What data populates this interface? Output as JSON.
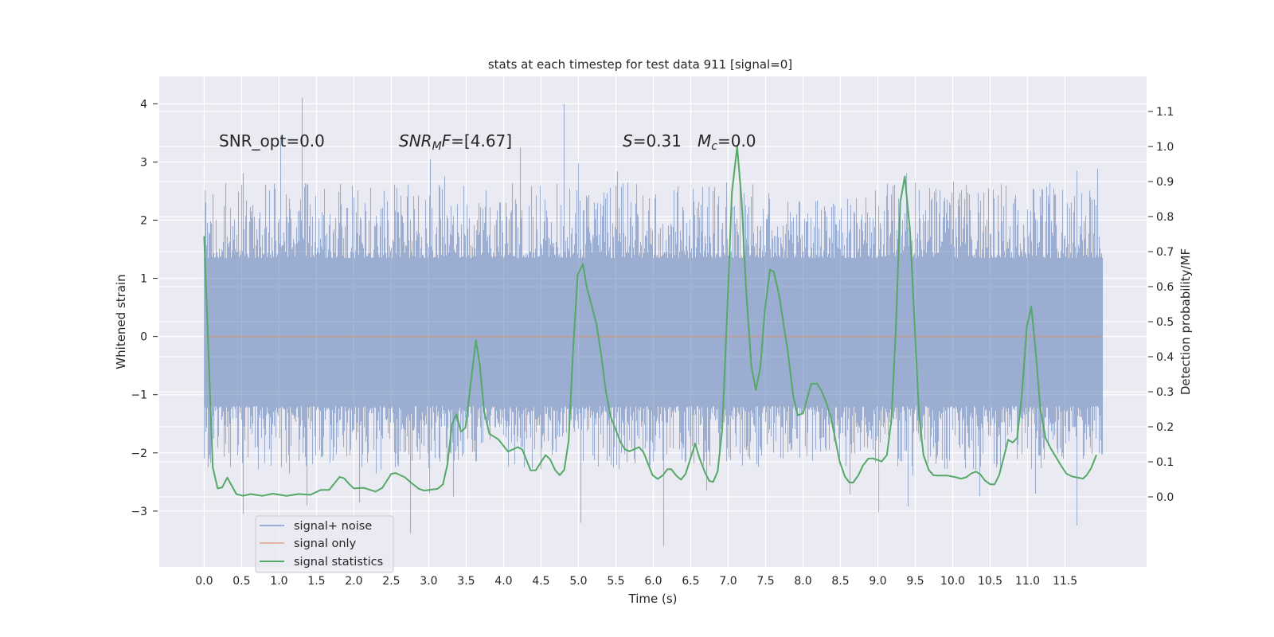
{
  "chart_data": {
    "type": "line",
    "title": "stats at each timestep for test data 911 [signal=0]",
    "xlabel": "Time (s)",
    "ylabel": "Whitened strain",
    "ylabel_right": "Detection probability/MF",
    "xlim": [
      -0.6,
      12.59
    ],
    "ylim": [
      -3.96,
      4.47
    ],
    "ylim_right": [
      -0.2,
      1.2
    ],
    "grid": true,
    "legend_position": "lower-left",
    "xticks": [
      "0.0",
      "0.5",
      "1.0",
      "1.5",
      "2.0",
      "2.5",
      "3.0",
      "3.5",
      "4.0",
      "4.5",
      "5.0",
      "5.5",
      "6.0",
      "6.5",
      "7.0",
      "7.5",
      "8.0",
      "8.5",
      "9.0",
      "9.5",
      "10.0",
      "10.5",
      "11.0",
      "11.5"
    ],
    "yticks": [
      "−3",
      "−2",
      "−1",
      "0",
      "1",
      "2",
      "3",
      "4"
    ],
    "yticks_right": [
      "0.0",
      "0.1",
      "0.2",
      "0.3",
      "0.4",
      "0.5",
      "0.6",
      "0.7",
      "0.8",
      "0.9",
      "1.0",
      "1.1"
    ],
    "annotations": {
      "snr_opt": "SNR_opt=0.0",
      "snr_mf_base": "SNR",
      "snr_mf_sub": "M",
      "snr_mf_rest": "F",
      "snr_mf_value": "=[4.67]",
      "s_var": "S",
      "s_value": "=0.31",
      "mc_var": "M",
      "mc_sub": "c",
      "mc_value": "=0.0"
    },
    "series": [
      {
        "name": "signal+ noise",
        "color": "#4c72b0",
        "axis": "left",
        "t_range": [
          0,
          11.99
        ],
        "band_typical": [
          -1.3,
          1.45
        ],
        "notable_extremes": [
          {
            "t": 1.3,
            "value": 4.1
          },
          {
            "t": 4.8,
            "value": 4.0
          },
          {
            "t": 1.02,
            "value": 3.45
          },
          {
            "t": 4.22,
            "value": 3.25
          },
          {
            "t": 0.52,
            "value": 2.8
          },
          {
            "t": 9.38,
            "value": 2.8
          },
          {
            "t": 11.65,
            "value": 2.85
          },
          {
            "t": 11.93,
            "value": 2.88
          },
          {
            "t": 5.0,
            "value": 2.98
          },
          {
            "t": 0.52,
            "value": -3.05
          },
          {
            "t": 2.75,
            "value": -3.38
          },
          {
            "t": 5.03,
            "value": -3.2
          },
          {
            "t": 6.13,
            "value": -3.6
          },
          {
            "t": 9.0,
            "value": -3.02
          },
          {
            "t": 11.65,
            "value": -3.25
          },
          {
            "t": 1.37,
            "value": -2.9
          },
          {
            "t": 2.07,
            "value": -2.85
          },
          {
            "t": 9.4,
            "value": -2.92
          },
          {
            "t": 3.33,
            "value": -2.75
          },
          {
            "t": 11.1,
            "value": -2.7
          }
        ]
      },
      {
        "name": "signal only",
        "color": "#dd8452",
        "axis": "left",
        "t": [
          0,
          11.99
        ],
        "values": [
          0,
          0
        ]
      },
      {
        "name": "signal statistics",
        "color": "#55a868",
        "axis": "right",
        "t": [
          0.0,
          0.115,
          0.18,
          0.24,
          0.31,
          0.43,
          0.52,
          0.62,
          0.78,
          0.92,
          1.1,
          1.26,
          1.42,
          1.56,
          1.67,
          1.81,
          1.87,
          1.94,
          2.0,
          2.13,
          2.29,
          2.38,
          2.5,
          2.56,
          2.68,
          2.79,
          2.87,
          2.94,
          3.12,
          3.19,
          3.25,
          3.31,
          3.37,
          3.43,
          3.49,
          3.63,
          3.68,
          3.74,
          3.81,
          3.93,
          4.06,
          4.19,
          4.25,
          4.36,
          4.43,
          4.56,
          4.62,
          4.69,
          4.75,
          4.81,
          4.87,
          4.93,
          4.99,
          5.06,
          5.11,
          5.24,
          5.3,
          5.37,
          5.43,
          5.5,
          5.56,
          5.62,
          5.68,
          5.81,
          5.87,
          5.99,
          6.06,
          6.13,
          6.19,
          6.24,
          6.31,
          6.37,
          6.43,
          6.56,
          6.61,
          6.69,
          6.75,
          6.8,
          6.86,
          6.92,
          6.99,
          7.05,
          7.12,
          7.18,
          7.24,
          7.31,
          7.37,
          7.43,
          7.49,
          7.56,
          7.61,
          7.68,
          7.8,
          7.87,
          7.93,
          8.0,
          8.11,
          8.19,
          8.25,
          8.31,
          8.37,
          8.42,
          8.49,
          8.56,
          8.62,
          8.67,
          8.74,
          8.8,
          8.87,
          8.93,
          8.99,
          9.05,
          9.12,
          9.18,
          9.24,
          9.3,
          9.36,
          9.43,
          9.49,
          9.55,
          9.61,
          9.68,
          9.74,
          9.8,
          9.93,
          10.04,
          10.11,
          10.18,
          10.25,
          10.31,
          10.37,
          10.43,
          10.5,
          10.56,
          10.62,
          10.68,
          10.74,
          10.8,
          10.86,
          10.92,
          10.99,
          11.05,
          11.11,
          11.17,
          11.24,
          11.31,
          11.46,
          11.52,
          11.6,
          11.74,
          11.79,
          11.85,
          11.92
        ],
        "values": [
          0.744,
          0.085,
          0.024,
          0.027,
          0.055,
          0.008,
          0.003,
          0.008,
          0.003,
          0.009,
          0.003,
          0.008,
          0.006,
          0.02,
          0.02,
          0.057,
          0.053,
          0.036,
          0.024,
          0.026,
          0.015,
          0.026,
          0.066,
          0.068,
          0.056,
          0.036,
          0.023,
          0.018,
          0.023,
          0.036,
          0.092,
          0.206,
          0.236,
          0.186,
          0.197,
          0.447,
          0.38,
          0.244,
          0.18,
          0.164,
          0.129,
          0.142,
          0.135,
          0.076,
          0.076,
          0.119,
          0.108,
          0.076,
          0.062,
          0.077,
          0.161,
          0.426,
          0.634,
          0.665,
          0.6,
          0.494,
          0.41,
          0.297,
          0.229,
          0.191,
          0.157,
          0.136,
          0.13,
          0.142,
          0.127,
          0.062,
          0.051,
          0.062,
          0.079,
          0.079,
          0.06,
          0.049,
          0.065,
          0.152,
          0.115,
          0.07,
          0.045,
          0.043,
          0.073,
          0.191,
          0.539,
          0.869,
          1.0,
          0.846,
          0.593,
          0.373,
          0.305,
          0.369,
          0.532,
          0.649,
          0.642,
          0.577,
          0.41,
          0.286,
          0.233,
          0.238,
          0.323,
          0.323,
          0.301,
          0.27,
          0.229,
          0.176,
          0.1,
          0.058,
          0.041,
          0.041,
          0.062,
          0.089,
          0.109,
          0.11,
          0.106,
          0.101,
          0.119,
          0.217,
          0.479,
          0.842,
          0.914,
          0.759,
          0.494,
          0.236,
          0.119,
          0.077,
          0.062,
          0.061,
          0.061,
          0.056,
          0.052,
          0.056,
          0.067,
          0.072,
          0.064,
          0.047,
          0.036,
          0.036,
          0.062,
          0.111,
          0.163,
          0.155,
          0.168,
          0.282,
          0.486,
          0.543,
          0.411,
          0.252,
          0.168,
          0.138,
          0.085,
          0.066,
          0.058,
          0.052,
          0.062,
          0.082,
          0.12
        ]
      }
    ]
  }
}
